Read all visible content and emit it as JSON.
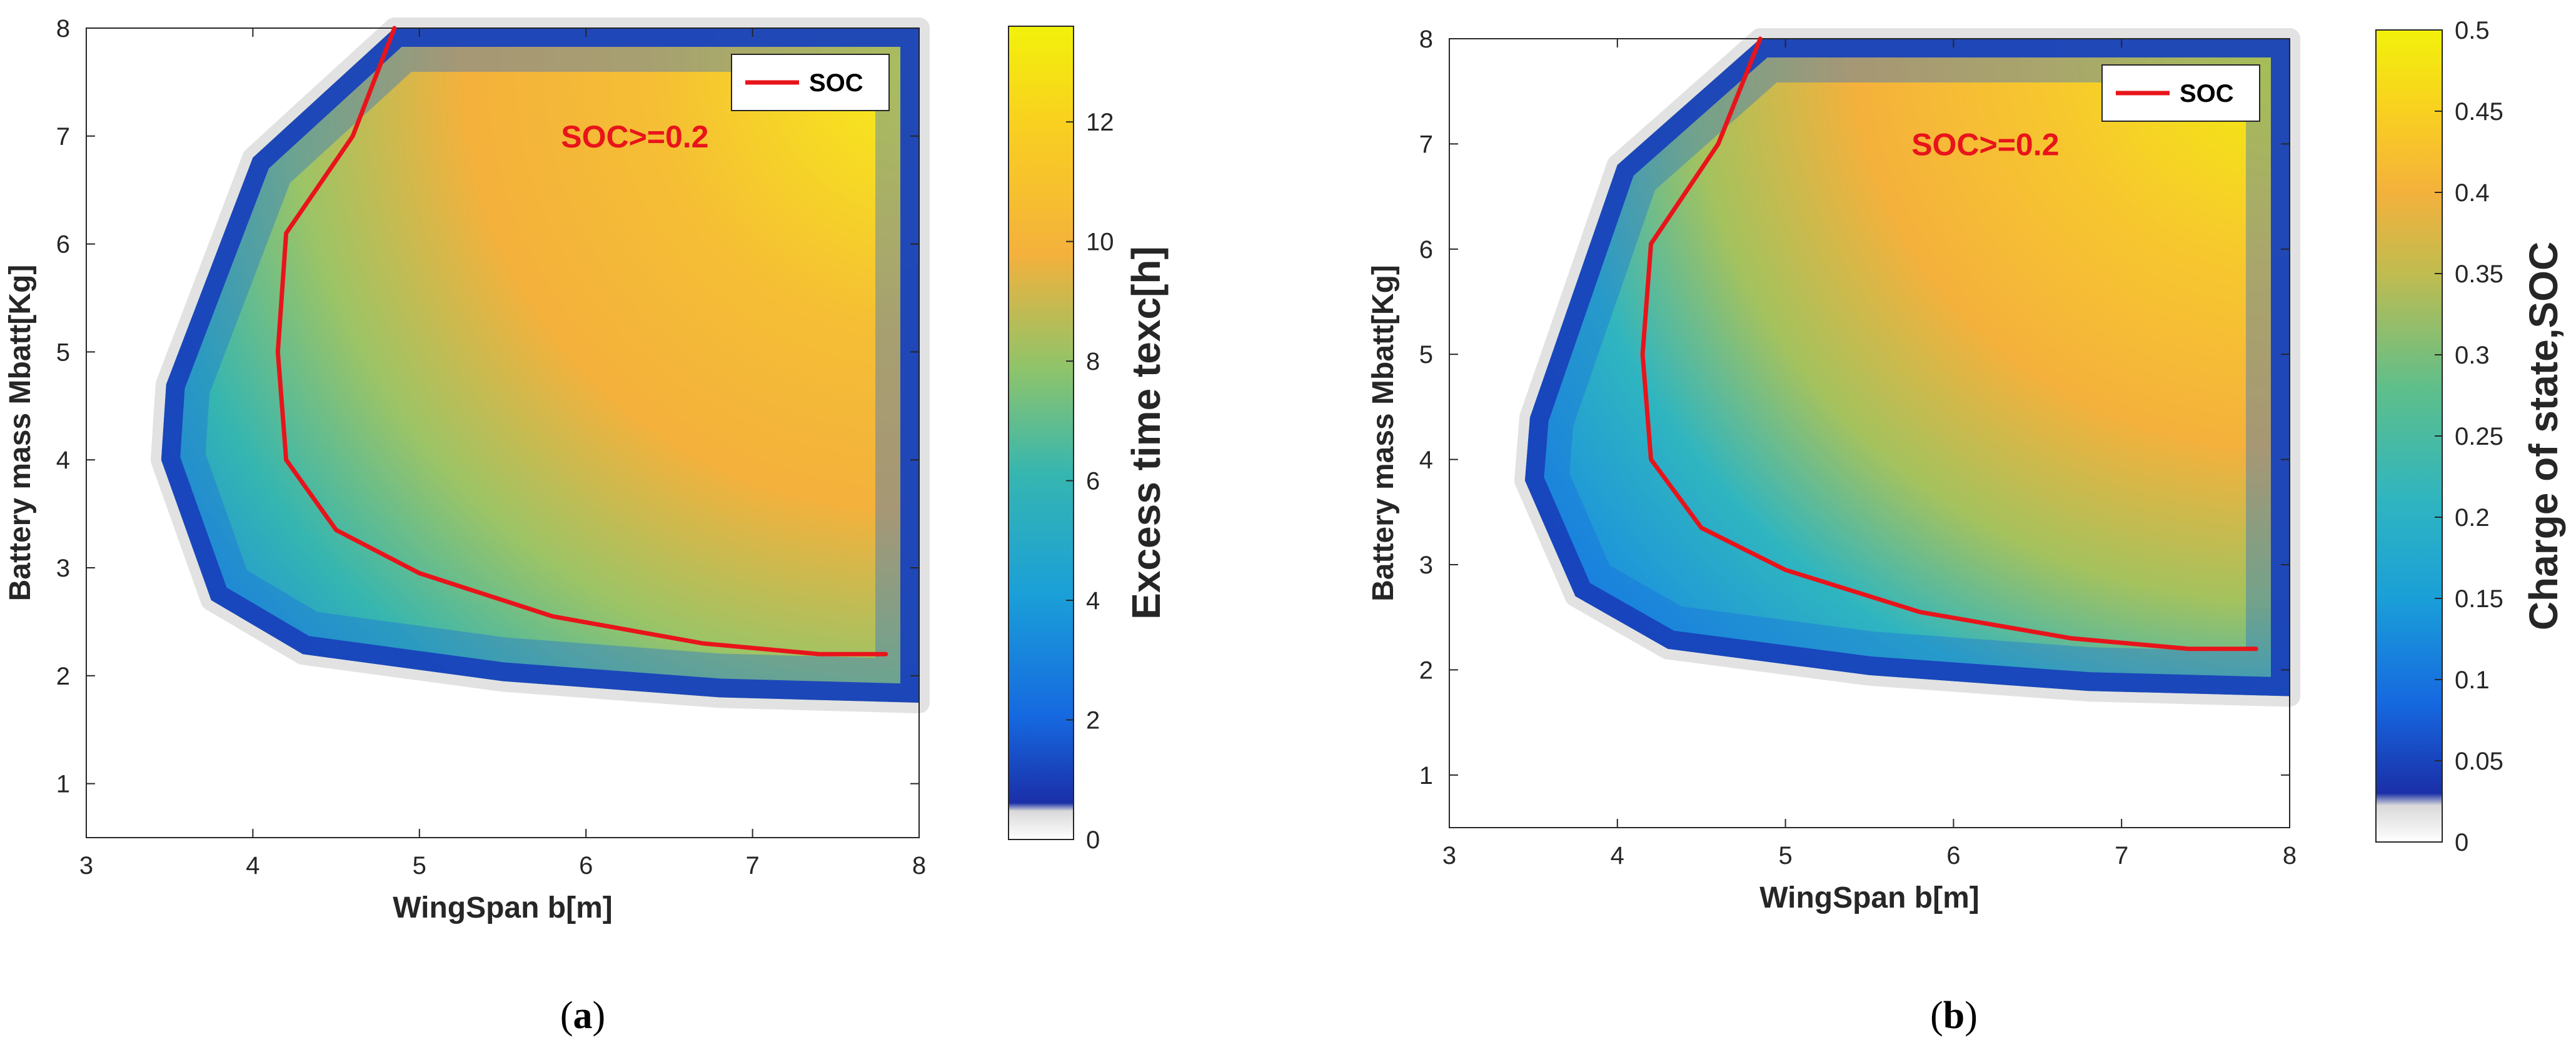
{
  "chart_data": [
    {
      "type": "heatmap",
      "panel_label": {
        "open": "(",
        "letter": "a",
        "close": ")"
      },
      "xlabel": "WingSpan b[m]",
      "ylabel": "Battery mass Mbatt[Kg]",
      "xlim": [
        3,
        8
      ],
      "ylim": [
        0.5,
        8
      ],
      "xticks": [
        3,
        4,
        5,
        6,
        7,
        8
      ],
      "yticks": [
        1,
        2,
        3,
        4,
        5,
        6,
        7,
        8
      ],
      "colorbar": {
        "label": "Excess time texc[h]",
        "range": [
          0,
          13.6
        ],
        "ticks": [
          0,
          2,
          4,
          6,
          8,
          10,
          12
        ]
      },
      "feasible_boundary": [
        [
          4.85,
          8
        ],
        [
          4.0,
          6.8
        ],
        [
          3.48,
          4.7
        ],
        [
          3.45,
          4.0
        ],
        [
          3.75,
          2.7
        ],
        [
          4.3,
          2.2
        ],
        [
          5.5,
          1.95
        ],
        [
          6.8,
          1.8
        ],
        [
          8,
          1.75
        ]
      ],
      "series": [
        {
          "name": "SOC",
          "color": "#e8141b",
          "x": [
            4.85,
            4.6,
            4.2,
            4.15,
            4.2,
            4.5,
            5.0,
            5.8,
            6.7,
            7.4,
            7.8
          ],
          "y": [
            8.0,
            7.0,
            6.1,
            5.0,
            4.0,
            3.35,
            2.95,
            2.55,
            2.3,
            2.2,
            2.2
          ]
        }
      ],
      "legend": {
        "entry": "SOC",
        "position": "top-right"
      },
      "annotation": {
        "text": "SOC>=0.2",
        "x": 5.85,
        "y": 7.0
      }
    },
    {
      "type": "heatmap",
      "panel_label": {
        "open": "(",
        "letter": "b",
        "close": ")"
      },
      "xlabel": "WingSpan b[m]",
      "ylabel": "Battery mass Mbatt[Kg]",
      "xlim": [
        3,
        8
      ],
      "ylim": [
        0.5,
        8
      ],
      "xticks": [
        3,
        4,
        5,
        6,
        7,
        8
      ],
      "yticks": [
        1,
        2,
        3,
        4,
        5,
        6,
        7,
        8
      ],
      "colorbar": {
        "label": "Charge of state,SOC",
        "range": [
          0,
          0.5
        ],
        "ticks": [
          0,
          0.05,
          0.1,
          0.15,
          0.2,
          0.25,
          0.3,
          0.35,
          0.4,
          0.45,
          0.5
        ]
      },
      "feasible_boundary": [
        [
          4.85,
          8
        ],
        [
          4.0,
          6.8
        ],
        [
          3.48,
          4.4
        ],
        [
          3.45,
          3.8
        ],
        [
          3.75,
          2.7
        ],
        [
          4.3,
          2.2
        ],
        [
          5.5,
          1.95
        ],
        [
          6.8,
          1.8
        ],
        [
          8,
          1.75
        ]
      ],
      "series": [
        {
          "name": "SOC",
          "color": "#e8141b",
          "x": [
            4.85,
            4.6,
            4.2,
            4.15,
            4.2,
            4.5,
            5.0,
            5.8,
            6.7,
            7.4,
            7.8
          ],
          "y": [
            8.0,
            7.0,
            6.05,
            5.0,
            4.0,
            3.35,
            2.95,
            2.55,
            2.3,
            2.2,
            2.2
          ]
        }
      ],
      "legend": {
        "entry": "SOC",
        "position": "top-right"
      },
      "annotation": {
        "text": "SOC>=0.2",
        "x": 5.75,
        "y": 7.0
      }
    }
  ],
  "colors": {
    "dark_blue": "#1a2fa8",
    "blue": "#1668e0",
    "teal": "#2fb5c0",
    "green": "#5fbf8a",
    "orange": "#f4b13c",
    "yellow": "#f2f20a",
    "red_line": "#e8141b"
  }
}
